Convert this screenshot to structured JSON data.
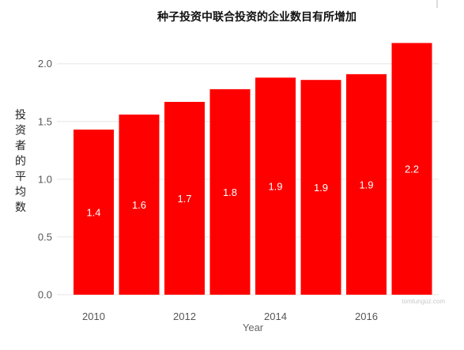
{
  "chart_data": {
    "type": "bar",
    "title": "种子投资中联合投资的企业数目有所增加",
    "xlabel": "Year",
    "ylabel": "投资者的平均数",
    "x": [
      2010,
      2011,
      2012,
      2013,
      2014,
      2015,
      2016,
      2017
    ],
    "values": [
      1.43,
      1.56,
      1.67,
      1.78,
      1.88,
      1.86,
      1.91,
      2.18
    ],
    "data_labels": [
      "1.4",
      "1.6",
      "1.7",
      "1.8",
      "1.9",
      "1.9",
      "1.9",
      "2.2"
    ],
    "ylim": [
      0,
      2.2
    ],
    "yticks": [
      "0.0",
      "0.5",
      "1.0",
      "1.5",
      "2.0"
    ],
    "xticks": [
      "2010",
      "2012",
      "2014",
      "2016"
    ],
    "bar_color": "#fe0000",
    "grid": true
  },
  "watermark": "tomtunguz.com"
}
